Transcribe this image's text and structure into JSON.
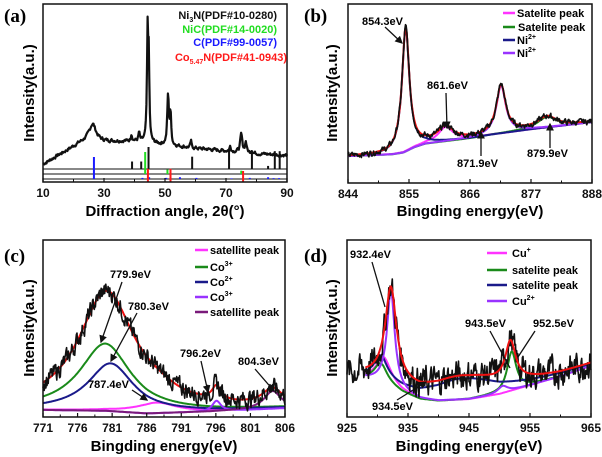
{
  "chart_data": [
    {
      "panel_label": "(a)",
      "type": "line",
      "title": "",
      "xlabel": "Diffraction angle, 2θ(°)",
      "ylabel": "Intensity(a.u.)",
      "xlim": [
        10,
        90
      ],
      "ylim": [
        0,
        100
      ],
      "xticks": [
        "10",
        "30",
        "50",
        "70",
        "90"
      ],
      "grid": false,
      "legend_position": "top-right",
      "legend": [
        {
          "pre": "Ni",
          "sub": "3",
          "post": "N(PDF#10-0280)",
          "color": "#111111"
        },
        {
          "pre": "NiC",
          "sub": "",
          "post": "(PDF#14-0020)",
          "color": "#22dd22"
        },
        {
          "pre": "C",
          "sub": "",
          "post": "(PDF#99-0057)",
          "color": "#1a1aff"
        },
        {
          "pre": "Co",
          "sub": "5.47",
          "post": "N(PDF#41-0943)",
          "color": "#ff1a1a"
        }
      ],
      "series": [
        {
          "color": "#111111",
          "x_range": [
            10,
            90
          ],
          "baseline": [
            [
              10,
              10
            ],
            [
              14,
              14
            ],
            [
              18,
              18
            ],
            [
              22,
              22
            ],
            [
              25,
              24
            ],
            [
              30,
              23
            ],
            [
              40,
              23
            ],
            [
              50,
              21
            ],
            [
              60,
              19
            ],
            [
              70,
              17.5
            ],
            [
              80,
              16
            ],
            [
              90,
              15
            ]
          ],
          "peaks": [
            [
              26.3,
              9,
              2.5
            ],
            [
              39,
              4,
              0.5
            ],
            [
              41.5,
              5,
              0.5
            ],
            [
              44.3,
              63,
              0.5
            ],
            [
              44.7,
              40,
              0.4
            ],
            [
              51,
              28,
              0.6
            ],
            [
              51.8,
              18,
              0.5
            ],
            [
              58.5,
              4,
              0.4
            ],
            [
              71.4,
              3,
              0.5
            ],
            [
              75,
              10,
              0.8
            ],
            [
              76.5,
              6,
              0.6
            ],
            [
              78.5,
              2,
              0.4
            ]
          ],
          "measured": true
        }
      ],
      "reference_patterns": [
        {
          "name": "Ni3N(PDF#10-0280)",
          "color": "#111111",
          "sticks": [
            [
              39.2,
              34
            ],
            [
              42.2,
              34
            ],
            [
              44.6,
              100
            ],
            [
              58.9,
              56
            ],
            [
              71.0,
              86
            ],
            [
              78.5,
              77
            ],
            [
              83.8,
              14
            ],
            [
              86.0,
              81
            ],
            [
              87.6,
              81
            ]
          ]
        },
        {
          "name": "NiC(PDF#14-0020)",
          "color": "#22dd22",
          "sticks": [
            [
              43.5,
              100
            ],
            [
              50.8,
              20
            ],
            [
              75.0,
              15
            ]
          ]
        },
        {
          "name": "C(PDF#99-0057)",
          "color": "#1a1aff",
          "sticks": [
            [
              26.7,
              100
            ],
            [
              42.6,
              5
            ],
            [
              44.8,
              8
            ],
            [
              50.4,
              5
            ],
            [
              54.9,
              8
            ],
            [
              60.3,
              5
            ],
            [
              71.8,
              3
            ],
            [
              77.8,
              5
            ],
            [
              83.8,
              8
            ],
            [
              85.6,
              4
            ],
            [
              87.4,
              4
            ]
          ]
        },
        {
          "name": "Co5.47N(PDF#41-0943)",
          "color": "#ff1a1a",
          "sticks": [
            [
              44.4,
              60
            ],
            [
              51.8,
              60
            ],
            [
              75.6,
              50
            ]
          ]
        }
      ]
    },
    {
      "panel_label": "(b)",
      "type": "line",
      "title": "",
      "xlabel": "Bingding energy(eV)",
      "ylabel": "Intensity(a.u.)",
      "xlim": [
        844,
        888
      ],
      "ylim": [
        0,
        100
      ],
      "xticks": [
        "844",
        "855",
        "866",
        "877",
        "888"
      ],
      "grid": false,
      "legend_position": "top-right",
      "legend": [
        {
          "pre": "Satelite peak",
          "sup": "",
          "color": "#ff33ff"
        },
        {
          "pre": "Satelite peak",
          "sup": "",
          "color": "#1a8a1a"
        },
        {
          "pre": "Ni",
          "sup": "2+",
          "color": "#1a1a8a"
        },
        {
          "pre": "Ni",
          "sup": "2+",
          "color": "#9933ff"
        }
      ],
      "annotations": [
        {
          "text": "854.3eV",
          "x": 854.3
        },
        {
          "text": "861.6eV",
          "x": 861.6
        },
        {
          "text": "871.9eV",
          "x": 871.9
        },
        {
          "text": "879.9eV",
          "x": 879.9
        }
      ],
      "baseline": [
        [
          844,
          15
        ],
        [
          852,
          16
        ],
        [
          854,
          17
        ],
        [
          856,
          20
        ],
        [
          858,
          22
        ],
        [
          862,
          23.5
        ],
        [
          866,
          25
        ],
        [
          870,
          27
        ],
        [
          877,
          30
        ],
        [
          888,
          34
        ]
      ],
      "series": [
        {
          "name": "Satelite peak",
          "color": "#ff33ff",
          "x_range": [
            844,
            888
          ],
          "peaks": [
            [
              861.6,
              8,
              3.2
            ]
          ]
        },
        {
          "name": "Satelite peak",
          "color": "#1a8a1a",
          "x_range": [
            844,
            888
          ],
          "peaks": [
            [
              879.9,
              6,
              4
            ]
          ]
        },
        {
          "name": "Ni2+",
          "color": "#1a1a8a",
          "x_range": [
            844,
            888
          ],
          "peaks": [
            [
              854.4,
              69,
              1.6
            ]
          ]
        },
        {
          "name": "Ni2+",
          "color": "#9933ff",
          "x_range": [
            844,
            888
          ],
          "peaks": [
            [
              871.6,
              27,
              2
            ]
          ]
        },
        {
          "color": "#ee1111",
          "x_range": [
            844,
            888
          ],
          "peaks": [
            [
              854.4,
              69,
              1.6
            ],
            [
              861.6,
              8,
              3.2
            ],
            [
              871.6,
              27,
              2
            ],
            [
              879.9,
              6,
              4
            ]
          ]
        },
        {
          "color": "#111111",
          "x_range": [
            844,
            888
          ],
          "peaks": [
            [
              854.4,
              69,
              1.6
            ],
            [
              861.6,
              8,
              3.2
            ],
            [
              871.6,
              27,
              2
            ],
            [
              879.9,
              6,
              4
            ]
          ],
          "measured": true
        }
      ]
    },
    {
      "panel_label": "(c)",
      "type": "line",
      "title": "",
      "xlabel": "Bingding energy(eV)",
      "ylabel": "Intensity(a.u.)",
      "xlim": [
        771,
        806
      ],
      "ylim": [
        0,
        100
      ],
      "xticks": [
        "771",
        "776",
        "781",
        "786",
        "791",
        "796",
        "801",
        "806"
      ],
      "grid": false,
      "legend_position": "top-right",
      "legend": [
        {
          "pre": "satellite peak",
          "sup": "",
          "color": "#ff33ff"
        },
        {
          "pre": "Co",
          "sup": "3+",
          "color": "#1a8a1a"
        },
        {
          "pre": "Co",
          "sup": "2+",
          "color": "#1a1a8a"
        },
        {
          "pre": "Co",
          "sup": "3+",
          "color": "#9933ff"
        },
        {
          "pre": "satellite peak",
          "sup": "",
          "color": "#7a1a7a"
        }
      ],
      "annotations": [
        {
          "text": "779.9eV",
          "x": 779.9
        },
        {
          "text": "780.3eV",
          "x": 780.3
        },
        {
          "text": "787.4eV",
          "x": 787.4
        },
        {
          "text": "796.2eV",
          "x": 796.2
        },
        {
          "text": "804.3eV",
          "x": 804.3
        }
      ],
      "baseline": [
        [
          771,
          4
        ],
        [
          780,
          3.5
        ],
        [
          786,
          2
        ],
        [
          795,
          3
        ],
        [
          806,
          5
        ]
      ],
      "series": [
        {
          "name": "satellite peak",
          "color": "#ff33ff",
          "x_range": [
            771,
            806
          ],
          "peaks": [
            [
              787.4,
              6,
              7
            ]
          ]
        },
        {
          "name": "Co3+",
          "color": "#1a8a1a",
          "x_range": [
            771,
            806
          ],
          "peaks": [
            [
              780,
              38,
              9
            ]
          ]
        },
        {
          "name": "Co2+",
          "color": "#1a1a8a",
          "x_range": [
            771,
            806
          ],
          "peaks": [
            [
              780.8,
              27,
              8
            ]
          ]
        },
        {
          "name": "Co3+",
          "color": "#9933ff",
          "x_range": [
            771,
            806
          ],
          "peaks": [
            [
              796.1,
              6,
              1.5
            ]
          ]
        },
        {
          "name": "satellite peak",
          "color": "#7a1a7a",
          "x_range": [
            771,
            806
          ],
          "peaks": [
            [
              804.2,
              10,
              3
            ]
          ]
        },
        {
          "color": "#ee1111",
          "x_range": [
            771,
            806
          ],
          "peaks": [
            [
              780.2,
              67,
              10
            ],
            [
              787.4,
              4,
              7
            ],
            [
              796.1,
              8,
              1.6
            ],
            [
              804.2,
              9,
              3.5
            ]
          ]
        },
        {
          "color": "#111111",
          "x_range": [
            771,
            806
          ],
          "peaks": [
            [
              780.2,
              67,
              10
            ],
            [
              787.4,
              4,
              7
            ],
            [
              796.1,
              8,
              1.6
            ],
            [
              804.2,
              9,
              3.5
            ]
          ],
          "measured": true
        }
      ]
    },
    {
      "panel_label": "(d)",
      "type": "line",
      "title": "",
      "xlabel": "Bingding energy(eV)",
      "ylabel": "Intensity(a.u.)",
      "xlim": [
        925,
        965
      ],
      "ylim": [
        0,
        100
      ],
      "xticks": [
        "925",
        "935",
        "945",
        "955",
        "965"
      ],
      "grid": false,
      "legend_position": "top-right",
      "legend": [
        {
          "pre": "Cu",
          "sup": "+",
          "color": "#ff33ff"
        },
        {
          "pre": "satelite peak",
          "sup": "",
          "color": "#1a8a1a"
        },
        {
          "pre": "satelite peak",
          "sup": "",
          "color": "#1a1a8a"
        },
        {
          "pre": "Cu",
          "sup": "2+",
          "color": "#9933ff"
        }
      ],
      "annotations": [
        {
          "text": "932.4eV",
          "x": 932.4
        },
        {
          "text": "934.5eV",
          "x": 934.5
        },
        {
          "text": "943.5eV",
          "x": 943.5
        },
        {
          "text": "952.5eV",
          "x": 952.5
        }
      ],
      "baseline": [
        [
          928,
          22
        ],
        [
          931,
          20
        ],
        [
          934,
          14
        ],
        [
          937,
          10
        ],
        [
          940,
          9
        ],
        [
          945,
          10
        ],
        [
          950,
          13
        ],
        [
          955,
          18
        ],
        [
          960,
          23
        ],
        [
          965,
          29
        ]
      ],
      "series": [
        {
          "name": "Cu+",
          "color": "#ff33ff",
          "x_range": [
            928,
            965
          ],
          "peaks": [
            [
              931,
              14,
              3
            ]
          ]
        },
        {
          "name": "satelite peak",
          "color": "#1a8a1a",
          "x_range": [
            928,
            965
          ],
          "peaks": [
            [
              930.5,
              10,
              2.5
            ],
            [
              952,
              22,
              1.8
            ]
          ]
        },
        {
          "name": "satelite peak",
          "color": "#1a1a8a",
          "x_range": [
            928,
            965
          ],
          "peaks": [
            [
              930.5,
              12,
              2.5
            ],
            [
              944,
              12,
              14
            ]
          ]
        },
        {
          "name": "Cu2+",
          "color": "#9933ff",
          "x_range": [
            928,
            965
          ],
          "peaks": [
            [
              932.2,
              54,
              1.5
            ],
            [
              950.5,
              4,
              2
            ]
          ]
        },
        {
          "color": "#111111",
          "x_range": [
            925,
            965
          ],
          "peaks": [
            [
              932.2,
              52,
              2.2
            ],
            [
              944,
              13,
              16
            ],
            [
              951.8,
              22,
              2
            ]
          ],
          "measured": true
        },
        {
          "color": "#ee1111",
          "x_range": [
            928,
            965
          ],
          "peaks": [
            [
              932.2,
              52,
              2.2
            ],
            [
              944,
              13,
              16
            ],
            [
              951.8,
              22,
              2
            ]
          ]
        }
      ]
    }
  ]
}
